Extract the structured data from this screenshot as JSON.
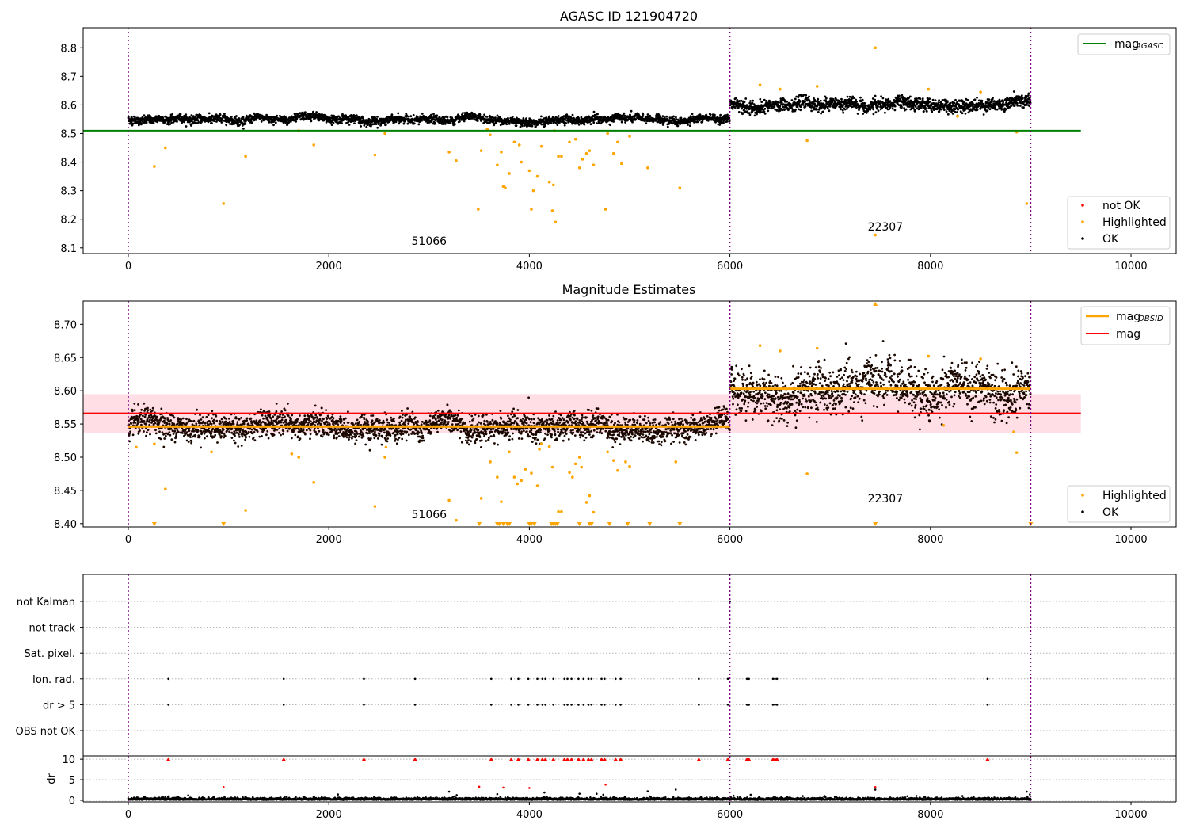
{
  "colors": {
    "agasc_line": "#008000",
    "obsid_line": "#ffa500",
    "mag_line": "#ff0000",
    "band": "#ffc0cb",
    "highlighted": "#ffa500",
    "ok": "#000000",
    "not_ok": "#ff0000",
    "obs_divider": "#800080"
  },
  "chart_data": [
    {
      "id": "top",
      "type": "scatter",
      "title": "AGASC ID 121904720",
      "xlim": [
        -450,
        10450
      ],
      "ylim": [
        8.08,
        8.87
      ],
      "xticks": [
        0,
        2000,
        4000,
        6000,
        8000,
        10000
      ],
      "yticks": [
        8.1,
        8.2,
        8.3,
        8.4,
        8.5,
        8.6,
        8.7,
        8.8
      ],
      "hlines": [
        {
          "name": "mag",
          "subscript": "AGASC",
          "y": 8.51,
          "x": [
            -450,
            9500
          ],
          "color": "#008000"
        }
      ],
      "obs_dividers": [
        0,
        6000,
        9000
      ],
      "observations": [
        {
          "obsid": "51066",
          "x_start": 0,
          "x_end": 6000,
          "mean": 8.548,
          "noise": 0.007,
          "trend": 0.006
        },
        {
          "obsid": "22307",
          "x_start": 6000,
          "x_end": 9000,
          "mean": 8.604,
          "noise": 0.011,
          "trend": -0.01
        }
      ],
      "annotations": [
        {
          "text": "51066",
          "x": 3000,
          "y": 8.11
        },
        {
          "text": "22307",
          "x": 7550,
          "y": 8.16
        }
      ],
      "highlighted_outliers": [
        [
          260,
          8.385
        ],
        [
          370,
          8.45
        ],
        [
          950,
          8.255
        ],
        [
          1170,
          8.42
        ],
        [
          1700,
          8.51
        ],
        [
          1850,
          8.46
        ],
        [
          2460,
          8.425
        ],
        [
          2560,
          8.5
        ],
        [
          3200,
          8.435
        ],
        [
          3270,
          8.405
        ],
        [
          3490,
          8.235
        ],
        [
          3520,
          8.44
        ],
        [
          3610,
          8.495
        ],
        [
          3680,
          8.39
        ],
        [
          3720,
          8.435
        ],
        [
          3740,
          8.315
        ],
        [
          3760,
          8.31
        ],
        [
          3800,
          8.36
        ],
        [
          3850,
          8.47
        ],
        [
          3900,
          8.46
        ],
        [
          3920,
          8.4
        ],
        [
          4000,
          8.37
        ],
        [
          4020,
          8.235
        ],
        [
          4040,
          8.3
        ],
        [
          4080,
          8.35
        ],
        [
          4120,
          8.455
        ],
        [
          4200,
          8.33
        ],
        [
          4230,
          8.23
        ],
        [
          4240,
          8.32
        ],
        [
          4260,
          8.19
        ],
        [
          4290,
          8.42
        ],
        [
          4320,
          8.42
        ],
        [
          4400,
          8.47
        ],
        [
          4460,
          8.48
        ],
        [
          4500,
          8.38
        ],
        [
          4530,
          8.41
        ],
        [
          4570,
          8.43
        ],
        [
          4600,
          8.44
        ],
        [
          4640,
          8.39
        ],
        [
          4760,
          8.235
        ],
        [
          4780,
          8.5
        ],
        [
          4840,
          8.43
        ],
        [
          4880,
          8.47
        ],
        [
          4920,
          8.395
        ],
        [
          5000,
          8.49
        ],
        [
          5180,
          8.38
        ],
        [
          5500,
          8.31
        ],
        [
          6770,
          8.475
        ],
        [
          7450,
          8.145
        ],
        [
          7450,
          8.8
        ],
        [
          8270,
          8.56
        ],
        [
          8860,
          8.505
        ],
        [
          8960,
          8.255
        ],
        [
          6300,
          8.67
        ],
        [
          6500,
          8.655
        ],
        [
          6870,
          8.665
        ],
        [
          7980,
          8.655
        ],
        [
          8500,
          8.645
        ],
        [
          4250,
          8.51
        ],
        [
          3580,
          8.515
        ]
      ],
      "legend_series": [
        "not OK",
        "Highlighted",
        "OK"
      ],
      "legend_line_position": "top-right",
      "legend_points_position": "lower-right"
    },
    {
      "id": "middle",
      "type": "scatter",
      "title": "Magnitude Estimates",
      "xlim": [
        -450,
        10450
      ],
      "ylim": [
        8.395,
        8.735
      ],
      "xticks": [
        0,
        2000,
        4000,
        6000,
        8000,
        10000
      ],
      "yticks": [
        8.4,
        8.45,
        8.5,
        8.55,
        8.6,
        8.65,
        8.7
      ],
      "ytick_labels": [
        "8.40",
        "8.45",
        "8.50",
        "8.55",
        "8.60",
        "8.65",
        "8.70"
      ],
      "hlines": [
        {
          "name": "mag",
          "subscript": "OBSID",
          "y": 8.546,
          "x": [
            0,
            6000
          ],
          "color": "#ffa500"
        },
        {
          "name": "mag",
          "subscript": "OBSID",
          "y": 8.603,
          "x": [
            6000,
            9000
          ],
          "color": "#ffa500"
        },
        {
          "name": "mag",
          "subscript": "",
          "y": 8.566,
          "x": [
            -450,
            9500
          ],
          "color": "#ff0000"
        }
      ],
      "band": {
        "y": [
          8.537,
          8.595
        ],
        "x": [
          -450,
          9500
        ]
      },
      "obs_dividers": [
        0,
        6000,
        9000
      ],
      "observations": [
        {
          "obsid": "51066",
          "x_start": 0,
          "x_end": 6000,
          "mean": 8.546,
          "noise": 0.007,
          "trend": 0.006
        },
        {
          "obsid": "22307",
          "x_start": 6000,
          "x_end": 9000,
          "mean": 8.603,
          "noise": 0.013,
          "trend": -0.01
        }
      ],
      "annotations": [
        {
          "text": "51066",
          "x": 3000,
          "y": 8.408
        },
        {
          "text": "22307",
          "x": 7550,
          "y": 8.432
        }
      ],
      "highlighted_outliers": [
        [
          80,
          8.515
        ],
        [
          260,
          8.52
        ],
        [
          370,
          8.452
        ],
        [
          830,
          8.508
        ],
        [
          1170,
          8.42
        ],
        [
          1630,
          8.505
        ],
        [
          1700,
          8.5
        ],
        [
          1850,
          8.462
        ],
        [
          2460,
          8.426
        ],
        [
          2560,
          8.5
        ],
        [
          2570,
          8.515
        ],
        [
          3200,
          8.435
        ],
        [
          3270,
          8.405
        ],
        [
          3520,
          8.438
        ],
        [
          3610,
          8.493
        ],
        [
          3680,
          8.47
        ],
        [
          3720,
          8.433
        ],
        [
          3800,
          8.508
        ],
        [
          3850,
          8.47
        ],
        [
          3880,
          8.46
        ],
        [
          3920,
          8.465
        ],
        [
          3960,
          8.482
        ],
        [
          4020,
          8.476
        ],
        [
          4080,
          8.457
        ],
        [
          4100,
          8.512
        ],
        [
          4120,
          8.52
        ],
        [
          4200,
          8.516
        ],
        [
          4230,
          8.485
        ],
        [
          4290,
          8.418
        ],
        [
          4320,
          8.418
        ],
        [
          4400,
          8.477
        ],
        [
          4430,
          8.47
        ],
        [
          4460,
          8.49
        ],
        [
          4500,
          8.5
        ],
        [
          4520,
          8.485
        ],
        [
          4570,
          8.432
        ],
        [
          4600,
          8.442
        ],
        [
          4640,
          8.417
        ],
        [
          4780,
          8.508
        ],
        [
          4840,
          8.495
        ],
        [
          4880,
          8.48
        ],
        [
          4960,
          8.493
        ],
        [
          5000,
          8.486
        ],
        [
          5460,
          8.493
        ],
        [
          6770,
          8.475
        ],
        [
          8130,
          8.548
        ],
        [
          8860,
          8.507
        ],
        [
          8830,
          8.538
        ],
        [
          6300,
          8.668
        ],
        [
          6500,
          8.66
        ],
        [
          6870,
          8.664
        ],
        [
          7980,
          8.652
        ],
        [
          8500,
          8.648
        ]
      ],
      "clipped_markers": [
        260,
        950,
        3500,
        3680,
        3700,
        3740,
        3780,
        3800,
        4000,
        4020,
        4050,
        4220,
        4240,
        4260,
        4280,
        4500,
        4600,
        4620,
        4800,
        4980,
        5200,
        5500,
        7450,
        9000
      ],
      "top_clipped_markers": [
        7450
      ],
      "legend_series": [
        "Highlighted",
        "OK"
      ],
      "legend_line_labels": [
        {
          "name": "mag",
          "subscript": "OBSID",
          "color": "#ffa500"
        },
        {
          "name": "mag",
          "subscript": "",
          "color": "#ff0000"
        }
      ]
    },
    {
      "id": "flags",
      "type": "scatter",
      "xlim": [
        -450,
        10450
      ],
      "categories": [
        "not Kalman",
        "not track",
        "Sat. pixel.",
        "Ion. rad.",
        "dr > 5",
        "OBS not OK"
      ],
      "flag_points": {
        "not Kalman": [
          6000
        ],
        "not track": [],
        "Sat. pixel.": [],
        "Ion. rad.": [
          400,
          1550,
          2350,
          2860,
          3620,
          3820,
          3890,
          3990,
          4080,
          4130,
          4160,
          4240,
          4350,
          4380,
          4420,
          4490,
          4540,
          4590,
          4620,
          4720,
          4750,
          4860,
          4910,
          5690,
          5980,
          6170,
          6190,
          6430,
          6450,
          6470,
          8570
        ],
        "dr > 5": [
          400,
          1550,
          2350,
          2860,
          3620,
          3820,
          3890,
          3990,
          4080,
          4130,
          4160,
          4240,
          4350,
          4380,
          4420,
          4490,
          4540,
          4590,
          4620,
          4720,
          4750,
          4860,
          4910,
          5690,
          5980,
          6170,
          6190,
          6430,
          6450,
          6470,
          8570
        ],
        "OBS not OK": []
      },
      "obs_dividers": [
        0,
        6000,
        9000
      ]
    },
    {
      "id": "dr",
      "type": "scatter",
      "ylabel": "dr",
      "xlim": [
        -450,
        10450
      ],
      "ylim": [
        -0.4,
        10.8
      ],
      "xticks": [
        0,
        2000,
        4000,
        6000,
        8000,
        10000
      ],
      "yticks": [
        0,
        5,
        10
      ],
      "capped_points": [
        400,
        1550,
        2350,
        2860,
        3620,
        3820,
        3890,
        3990,
        4080,
        4130,
        4160,
        4240,
        4350,
        4380,
        4420,
        4490,
        4540,
        4590,
        4620,
        4720,
        4750,
        4860,
        4910,
        5690,
        5980,
        6170,
        6190,
        6430,
        6450,
        6470,
        8570
      ],
      "scatter_points": [
        [
          950,
          3.2
        ],
        [
          3500,
          3.3
        ],
        [
          3740,
          3.1
        ],
        [
          4000,
          3.0
        ],
        [
          4760,
          3.8
        ],
        [
          7450,
          3.2
        ],
        [
          7450,
          2.6
        ],
        [
          3200,
          2.1
        ],
        [
          3680,
          1.5
        ],
        [
          5460,
          2.6
        ],
        [
          5180,
          2.2
        ],
        [
          8960,
          2.1
        ],
        [
          4500,
          1.6
        ],
        [
          4150,
          1.9
        ]
      ],
      "obs_dividers": [
        0,
        6000,
        9000
      ]
    }
  ]
}
